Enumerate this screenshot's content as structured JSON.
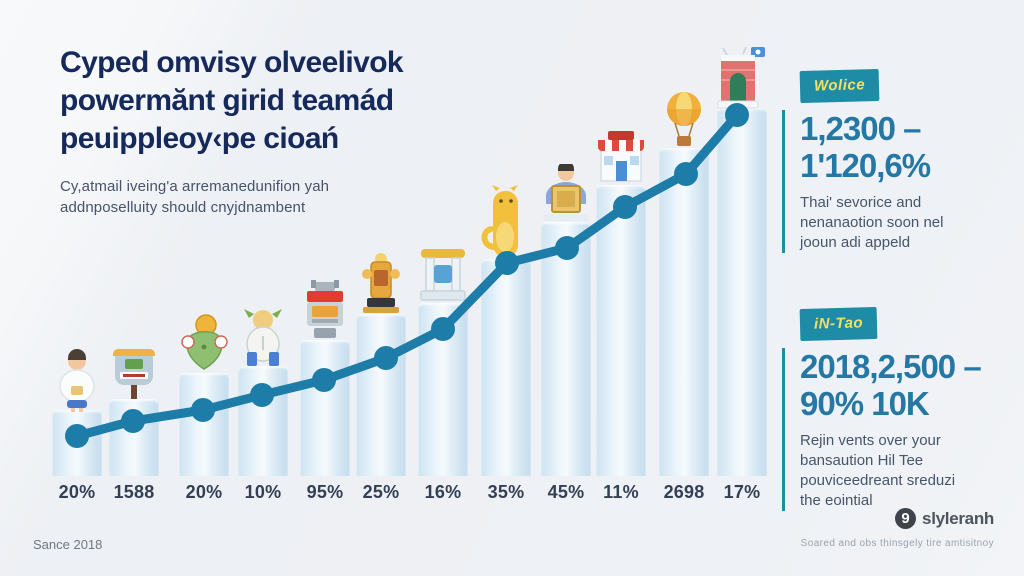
{
  "header": {
    "title_lines": [
      "Cyped omvisy olveelivok",
      "powermănt girid teamád",
      "peuippleoy‹pe cioań"
    ],
    "subtitle_lines": [
      "Cy,atmail iveing'a arremanedunifion yah",
      "addnposelluity should cnyjdnambent"
    ]
  },
  "stats": [
    {
      "badge": "Wolice",
      "value_lines": [
        "1,2300 –",
        "1'120,6%"
      ],
      "desc_lines": [
        "Thai' sevorice and",
        "nenanaotion soon nel",
        "jooun adi appeld"
      ]
    },
    {
      "badge": "iN-Tao",
      "value_lines": [
        "2018,2,500 –",
        "90% 10K"
      ],
      "desc_lines": [
        "Rejin vents over your",
        "bansaution Hil Tee",
        "pouviceedreant sreduzi",
        "the eointial"
      ]
    }
  ],
  "footer": {
    "left": "Sance 2018",
    "brand": "slyleranh",
    "brand_mark_glyph": "9",
    "fine_print": "Soared and obs thinsgely tire amtisitnoy"
  },
  "colors": {
    "background": "#eef1f5",
    "title": "#16295b",
    "bar_fill": "#cfe3f1",
    "bar_highlight": "#f5fafd",
    "trend_line": "#1d7ca8",
    "accent_teal": "#1e8ca6",
    "badge_text_yellow": "#f2e066",
    "stat_number_blue": "#2578a3",
    "axis_label": "#333f55"
  },
  "chart_data": {
    "type": "bar",
    "title": "",
    "xlabel": "",
    "ylabel": "",
    "categories": [
      "20%",
      "1588",
      "20%",
      "10%",
      "95%",
      "25%",
      "16%",
      "35%",
      "45%",
      "11%",
      "2698",
      "17%"
    ],
    "series": [
      {
        "name": "bars",
        "type": "bar",
        "values": [
          18,
          21,
          28,
          30,
          37,
          44,
          47,
          59,
          69,
          79,
          89,
          100
        ]
      },
      {
        "name": "trend",
        "type": "line",
        "values": [
          11,
          15,
          18,
          22,
          26,
          32,
          40,
          58,
          62,
          73,
          82,
          98
        ]
      }
    ],
    "ylim": [
      0,
      100
    ],
    "grid": false,
    "legend": false,
    "bar_icons": [
      "person-kid",
      "signpost-shop",
      "tree-coin",
      "viking-kid",
      "robot-grill",
      "gold-statue",
      "shrine-gate",
      "yellow-cat",
      "person-box",
      "shop-store",
      "hot-air-balloon",
      "castle-gate"
    ]
  }
}
